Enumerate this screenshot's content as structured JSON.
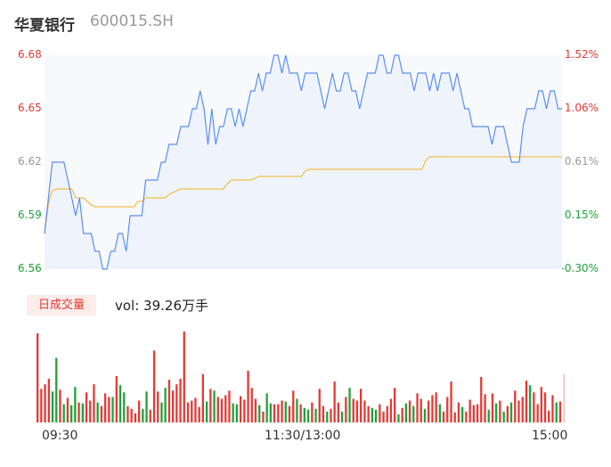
{
  "header": {
    "name": "华夏银行",
    "code": "600015.SH"
  },
  "colors": {
    "up": "#e53935",
    "down": "#1ea339",
    "neutral": "#999999",
    "price_line": "#5b8ff0",
    "avg_line": "#f2c14e"
  },
  "price_axis": {
    "left_labels": [
      "6.68",
      "6.65",
      "6.62",
      "6.59",
      "6.56"
    ],
    "right_labels": [
      "1.52%",
      "1.06%",
      "0.61%",
      "0.15%",
      "-0.30%"
    ],
    "label_colors": [
      "up",
      "up",
      "neutral",
      "down",
      "down"
    ],
    "min": 6.56,
    "max": 6.68
  },
  "volume": {
    "badge": "日成交量",
    "summary": "vol: 39.26万手"
  },
  "time_axis": {
    "labels": [
      "09:30",
      "11:30/13:00",
      "15:00"
    ]
  },
  "chart_data": {
    "type": "line",
    "x_label": "",
    "y_label": "",
    "ylim": [
      6.56,
      6.68
    ],
    "price_series": [
      6.58,
      6.6,
      6.62,
      6.62,
      6.62,
      6.62,
      6.61,
      6.6,
      6.59,
      6.6,
      6.58,
      6.58,
      6.58,
      6.57,
      6.57,
      6.56,
      6.56,
      6.57,
      6.57,
      6.58,
      6.58,
      6.57,
      6.59,
      6.59,
      6.59,
      6.59,
      6.61,
      6.61,
      6.61,
      6.61,
      6.62,
      6.62,
      6.63,
      6.63,
      6.63,
      6.64,
      6.64,
      6.64,
      6.65,
      6.65,
      6.66,
      6.65,
      6.63,
      6.65,
      6.63,
      6.64,
      6.64,
      6.65,
      6.65,
      6.64,
      6.65,
      6.64,
      6.65,
      6.66,
      6.66,
      6.67,
      6.66,
      6.67,
      6.67,
      6.68,
      6.68,
      6.67,
      6.68,
      6.67,
      6.67,
      6.67,
      6.66,
      6.67,
      6.67,
      6.67,
      6.67,
      6.66,
      6.65,
      6.66,
      6.67,
      6.66,
      6.66,
      6.67,
      6.67,
      6.66,
      6.66,
      6.65,
      6.66,
      6.67,
      6.67,
      6.67,
      6.68,
      6.68,
      6.67,
      6.67,
      6.68,
      6.68,
      6.67,
      6.67,
      6.67,
      6.66,
      6.67,
      6.67,
      6.67,
      6.66,
      6.67,
      6.66,
      6.67,
      6.67,
      6.67,
      6.66,
      6.67,
      6.66,
      6.65,
      6.65,
      6.64,
      6.64,
      6.64,
      6.64,
      6.64,
      6.63,
      6.64,
      6.64,
      6.64,
      6.63,
      6.62,
      6.62,
      6.62,
      6.64,
      6.65,
      6.65,
      6.65,
      6.66,
      6.66,
      6.65,
      6.66,
      6.66,
      6.65,
      6.65
    ],
    "avg_series": [
      6.58,
      6.597,
      6.604,
      6.605,
      6.605,
      6.605,
      6.605,
      6.605,
      6.6,
      6.6,
      6.6,
      6.598,
      6.596,
      6.595,
      6.595,
      6.595,
      6.595,
      6.595,
      6.595,
      6.595,
      6.595,
      6.595,
      6.595,
      6.595,
      6.598,
      6.598,
      6.6,
      6.6,
      6.6,
      6.6,
      6.6,
      6.6,
      6.602,
      6.603,
      6.604,
      6.605,
      6.605,
      6.605,
      6.605,
      6.605,
      6.605,
      6.605,
      6.605,
      6.605,
      6.605,
      6.605,
      6.605,
      6.608,
      6.61,
      6.61,
      6.61,
      6.61,
      6.61,
      6.61,
      6.611,
      6.612,
      6.612,
      6.612,
      6.612,
      6.612,
      6.612,
      6.612,
      6.612,
      6.612,
      6.612,
      6.612,
      6.612,
      6.615,
      6.616,
      6.616,
      6.616,
      6.616,
      6.616,
      6.616,
      6.616,
      6.616,
      6.616,
      6.616,
      6.616,
      6.616,
      6.616,
      6.616,
      6.616,
      6.616,
      6.616,
      6.616,
      6.616,
      6.616,
      6.616,
      6.616,
      6.616,
      6.616,
      6.616,
      6.616,
      6.616,
      6.616,
      6.616,
      6.616,
      6.621,
      6.623,
      6.623,
      6.623,
      6.623,
      6.623,
      6.623,
      6.623,
      6.623,
      6.623,
      6.623,
      6.623,
      6.623,
      6.623,
      6.623,
      6.623,
      6.623,
      6.623,
      6.623,
      6.623,
      6.623,
      6.623,
      6.623,
      6.623,
      6.623,
      6.623,
      6.623,
      6.623,
      6.623,
      6.623,
      6.623,
      6.623,
      6.623,
      6.623,
      6.623,
      6.623
    ],
    "volume_series": [
      {
        "v": 0.98,
        "d": "up"
      },
      {
        "v": 0.37,
        "d": "up"
      },
      {
        "v": 0.42,
        "d": "up"
      },
      {
        "v": 0.48,
        "d": "up"
      },
      {
        "v": 0.34,
        "d": "down"
      },
      {
        "v": 0.71,
        "d": "down"
      },
      {
        "v": 0.36,
        "d": "up"
      },
      {
        "v": 0.2,
        "d": "down"
      },
      {
        "v": 0.27,
        "d": "up"
      },
      {
        "v": 0.19,
        "d": "down"
      },
      {
        "v": 0.39,
        "d": "down"
      },
      {
        "v": 0.22,
        "d": "up"
      },
      {
        "v": 0.21,
        "d": "down"
      },
      {
        "v": 0.33,
        "d": "up"
      },
      {
        "v": 0.24,
        "d": "up"
      },
      {
        "v": 0.42,
        "d": "up"
      },
      {
        "v": 0.22,
        "d": "down"
      },
      {
        "v": 0.18,
        "d": "up"
      },
      {
        "v": 0.32,
        "d": "up"
      },
      {
        "v": 0.28,
        "d": "up"
      },
      {
        "v": 0.28,
        "d": "down"
      },
      {
        "v": 0.51,
        "d": "up"
      },
      {
        "v": 0.41,
        "d": "down"
      },
      {
        "v": 0.33,
        "d": "down"
      },
      {
        "v": 0.18,
        "d": "up"
      },
      {
        "v": 0.15,
        "d": "up"
      },
      {
        "v": 0.1,
        "d": "up"
      },
      {
        "v": 0.24,
        "d": "up"
      },
      {
        "v": 0.15,
        "d": "down"
      },
      {
        "v": 0.34,
        "d": "down"
      },
      {
        "v": 0.14,
        "d": "up"
      },
      {
        "v": 0.79,
        "d": "up"
      },
      {
        "v": 0.34,
        "d": "up"
      },
      {
        "v": 0.22,
        "d": "down"
      },
      {
        "v": 0.38,
        "d": "down"
      },
      {
        "v": 0.47,
        "d": "up"
      },
      {
        "v": 0.35,
        "d": "up"
      },
      {
        "v": 0.42,
        "d": "up"
      },
      {
        "v": 0.48,
        "d": "up"
      },
      {
        "v": 1.0,
        "d": "up"
      },
      {
        "v": 0.22,
        "d": "up"
      },
      {
        "v": 0.24,
        "d": "up"
      },
      {
        "v": 0.27,
        "d": "up"
      },
      {
        "v": 0.17,
        "d": "up"
      },
      {
        "v": 0.53,
        "d": "up"
      },
      {
        "v": 0.23,
        "d": "down"
      },
      {
        "v": 0.37,
        "d": "up"
      },
      {
        "v": 0.35,
        "d": "down"
      },
      {
        "v": 0.28,
        "d": "up"
      },
      {
        "v": 0.26,
        "d": "up"
      },
      {
        "v": 0.3,
        "d": "up"
      },
      {
        "v": 0.35,
        "d": "up"
      },
      {
        "v": 0.21,
        "d": "down"
      },
      {
        "v": 0.2,
        "d": "down"
      },
      {
        "v": 0.29,
        "d": "up"
      },
      {
        "v": 0.25,
        "d": "up"
      },
      {
        "v": 0.57,
        "d": "up"
      },
      {
        "v": 0.38,
        "d": "up"
      },
      {
        "v": 0.26,
        "d": "up"
      },
      {
        "v": 0.19,
        "d": "down"
      },
      {
        "v": 0.12,
        "d": "up"
      },
      {
        "v": 0.32,
        "d": "down"
      },
      {
        "v": 0.21,
        "d": "down"
      },
      {
        "v": 0.2,
        "d": "up"
      },
      {
        "v": 0.2,
        "d": "up"
      },
      {
        "v": 0.24,
        "d": "up"
      },
      {
        "v": 0.23,
        "d": "down"
      },
      {
        "v": 0.18,
        "d": "up"
      },
      {
        "v": 0.35,
        "d": "up"
      },
      {
        "v": 0.26,
        "d": "down"
      },
      {
        "v": 0.2,
        "d": "up"
      },
      {
        "v": 0.16,
        "d": "down"
      },
      {
        "v": 0.14,
        "d": "down"
      },
      {
        "v": 0.22,
        "d": "up"
      },
      {
        "v": 0.15,
        "d": "down"
      },
      {
        "v": 0.37,
        "d": "up"
      },
      {
        "v": 0.18,
        "d": "up"
      },
      {
        "v": 0.12,
        "d": "down"
      },
      {
        "v": 0.15,
        "d": "up"
      },
      {
        "v": 0.45,
        "d": "up"
      },
      {
        "v": 0.22,
        "d": "up"
      },
      {
        "v": 0.12,
        "d": "down"
      },
      {
        "v": 0.28,
        "d": "up"
      },
      {
        "v": 0.38,
        "d": "down"
      },
      {
        "v": 0.26,
        "d": "up"
      },
      {
        "v": 0.24,
        "d": "up"
      },
      {
        "v": 0.37,
        "d": "up"
      },
      {
        "v": 0.24,
        "d": "up"
      },
      {
        "v": 0.18,
        "d": "up"
      },
      {
        "v": 0.16,
        "d": "down"
      },
      {
        "v": 0.14,
        "d": "down"
      },
      {
        "v": 0.2,
        "d": "up"
      },
      {
        "v": 0.12,
        "d": "up"
      },
      {
        "v": 0.18,
        "d": "up"
      },
      {
        "v": 0.26,
        "d": "up"
      },
      {
        "v": 0.38,
        "d": "up"
      },
      {
        "v": 0.09,
        "d": "down"
      },
      {
        "v": 0.16,
        "d": "up"
      },
      {
        "v": 0.21,
        "d": "down"
      },
      {
        "v": 0.24,
        "d": "up"
      },
      {
        "v": 0.18,
        "d": "down"
      },
      {
        "v": 0.32,
        "d": "up"
      },
      {
        "v": 0.26,
        "d": "up"
      },
      {
        "v": 0.15,
        "d": "down"
      },
      {
        "v": 0.24,
        "d": "up"
      },
      {
        "v": 0.3,
        "d": "up"
      },
      {
        "v": 0.33,
        "d": "up"
      },
      {
        "v": 0.2,
        "d": "down"
      },
      {
        "v": 0.12,
        "d": "up"
      },
      {
        "v": 0.28,
        "d": "up"
      },
      {
        "v": 0.45,
        "d": "up"
      },
      {
        "v": 0.11,
        "d": "up"
      },
      {
        "v": 0.22,
        "d": "up"
      },
      {
        "v": 0.17,
        "d": "down"
      },
      {
        "v": 0.12,
        "d": "up"
      },
      {
        "v": 0.25,
        "d": "up"
      },
      {
        "v": 0.19,
        "d": "up"
      },
      {
        "v": 0.2,
        "d": "up"
      },
      {
        "v": 0.5,
        "d": "up"
      },
      {
        "v": 0.31,
        "d": "up"
      },
      {
        "v": 0.14,
        "d": "down"
      },
      {
        "v": 0.32,
        "d": "up"
      },
      {
        "v": 0.21,
        "d": "down"
      },
      {
        "v": 0.24,
        "d": "up"
      },
      {
        "v": 0.12,
        "d": "down"
      },
      {
        "v": 0.18,
        "d": "up"
      },
      {
        "v": 0.22,
        "d": "down"
      },
      {
        "v": 0.35,
        "d": "up"
      },
      {
        "v": 0.24,
        "d": "up"
      },
      {
        "v": 0.28,
        "d": "up"
      },
      {
        "v": 0.46,
        "d": "up"
      },
      {
        "v": 0.41,
        "d": "down"
      },
      {
        "v": 0.33,
        "d": "up"
      },
      {
        "v": 0.2,
        "d": "up"
      },
      {
        "v": 0.39,
        "d": "up"
      },
      {
        "v": 0.33,
        "d": "up"
      },
      {
        "v": 0.13,
        "d": "up"
      },
      {
        "v": 0.3,
        "d": "up"
      },
      {
        "v": 0.22,
        "d": "down"
      },
      {
        "v": 0.23,
        "d": "up"
      }
    ]
  }
}
